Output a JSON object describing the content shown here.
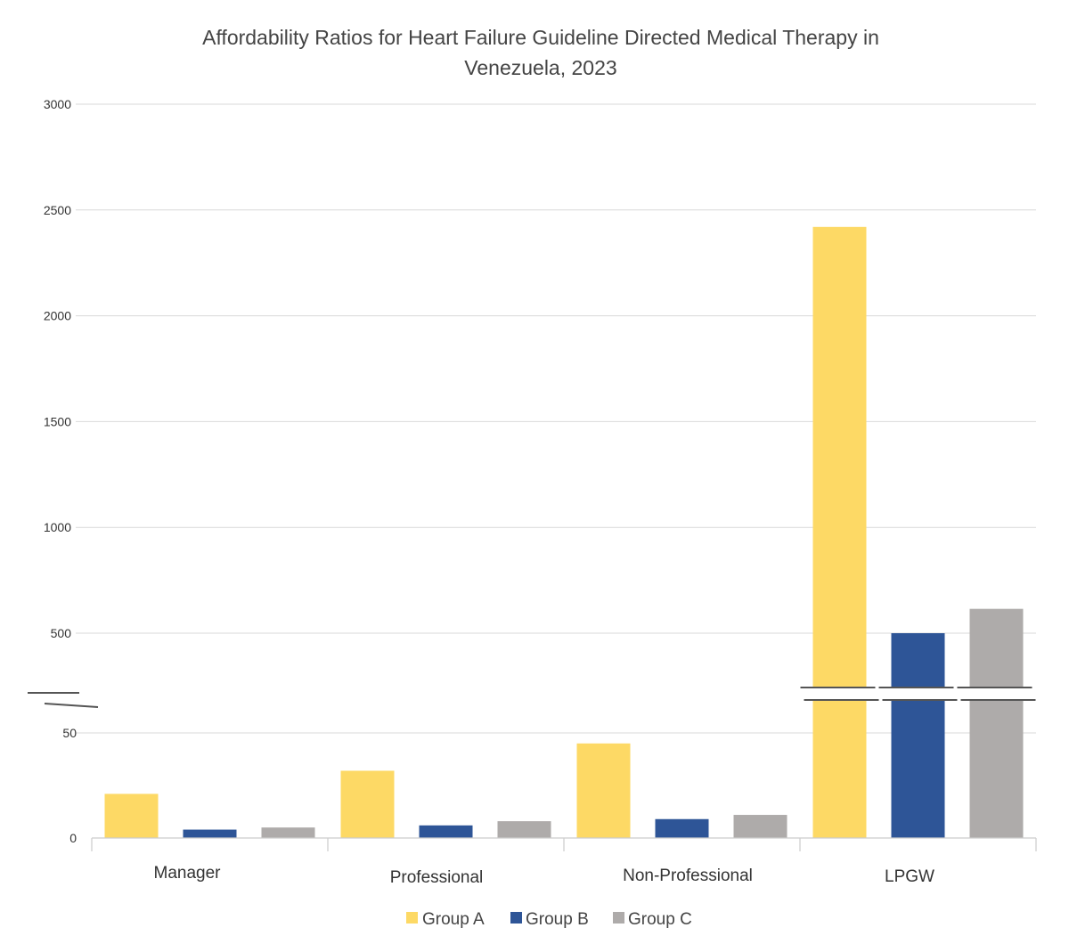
{
  "chart_data": {
    "type": "bar",
    "title": "Affordability Ratios for Heart Failure Guideline Directed Medical Therapy in Venezuela, 2023",
    "title_lines": [
      "Affordability Ratios for Heart Failure Guideline Directed Medical Therapy in",
      "Venezuela, 2023"
    ],
    "xlabel": "",
    "ylabel": "",
    "categories": [
      "Manager",
      "Professional",
      "Non-Professional",
      "LPGW"
    ],
    "series": [
      {
        "name": "Group A",
        "color": "#FDD965",
        "values": [
          21,
          32,
          45,
          2420
        ]
      },
      {
        "name": "Group B",
        "color": "#2E5597",
        "values": [
          4,
          6,
          9,
          500
        ]
      },
      {
        "name": "Group C",
        "color": "#AEABAA",
        "values": [
          5,
          8,
          11,
          615
        ]
      }
    ],
    "axis_break": {
      "lower_range": [
        0,
        50
      ],
      "upper_range": [
        500,
        3000
      ]
    },
    "y_ticks_lower": [
      0,
      50
    ],
    "y_ticks_upper": [
      500,
      1000,
      1500,
      2000,
      2500,
      3000
    ],
    "y_tick_labels_lower": [
      "0",
      "50"
    ],
    "y_tick_labels_upper": [
      "500",
      "1000",
      "1500",
      "2000",
      "2500",
      "3000"
    ],
    "grid": true,
    "legend_position": "bottom-center",
    "legend_labels": [
      "Group A",
      "Group B",
      "Group C"
    ]
  }
}
